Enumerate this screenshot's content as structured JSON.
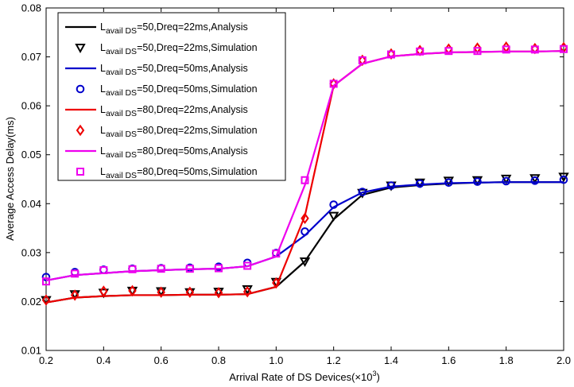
{
  "chart_data": {
    "type": "line",
    "xlabel": "Arrival Rate of DS Devices(×10",
    "xlabel_exp": "3",
    "xlabel_end": ")",
    "ylabel": "Average Access Delay(ms)",
    "xlim": [
      0.2,
      2.0
    ],
    "ylim": [
      0.01,
      0.08
    ],
    "xticks": [
      0.2,
      0.4,
      0.6,
      0.8,
      1.0,
      1.2,
      1.4,
      1.6,
      1.8,
      2.0
    ],
    "xtick_labels": [
      "0.2",
      "0.4",
      "0.6",
      "0.8",
      "1.0",
      "1.2",
      "1.4",
      "1.6",
      "1.8",
      "2.0"
    ],
    "yticks": [
      0.01,
      0.02,
      0.03,
      0.04,
      0.05,
      0.06,
      0.07,
      0.08
    ],
    "ytick_labels": [
      "0.01",
      "0.02",
      "0.03",
      "0.04",
      "0.05",
      "0.06",
      "0.07",
      "0.08"
    ],
    "legend_position": "top-left",
    "x": [
      0.2,
      0.3,
      0.4,
      0.5,
      0.6,
      0.7,
      0.8,
      0.9,
      1.0,
      1.1,
      1.2,
      1.3,
      1.4,
      1.5,
      1.6,
      1.7,
      1.8,
      1.9,
      2.0
    ],
    "series": [
      {
        "name_main": "L",
        "name_sub": "avail DS",
        "name_rest": "=50,Dreq=22ms,Analysis",
        "kind": "line",
        "color": "#000000",
        "values": [
          0.0198,
          0.0208,
          0.0211,
          0.0213,
          0.0213,
          0.0214,
          0.0214,
          0.0215,
          0.023,
          0.0282,
          0.0368,
          0.0418,
          0.0433,
          0.0438,
          0.0441,
          0.0443,
          0.0444,
          0.0444,
          0.0444
        ]
      },
      {
        "name_main": "L",
        "name_sub": "avail DS",
        "name_rest": "=50,Dreq=22ms,Simulation",
        "kind": "marker",
        "marker": "triangle-down",
        "color": "#000000",
        "values": [
          0.0203,
          0.0215,
          0.0218,
          0.0222,
          0.0221,
          0.0219,
          0.022,
          0.0225,
          0.024,
          0.0282,
          0.0375,
          0.0422,
          0.0437,
          0.0443,
          0.0447,
          0.0448,
          0.0451,
          0.0452,
          0.0455
        ]
      },
      {
        "name_main": "L",
        "name_sub": "avail DS",
        "name_rest": "=50,Dreq=50ms,Analysis",
        "kind": "line",
        "color": "#0000cc",
        "values": [
          0.0243,
          0.0254,
          0.0258,
          0.0262,
          0.0264,
          0.0266,
          0.0267,
          0.0272,
          0.0292,
          0.0335,
          0.0393,
          0.0423,
          0.0435,
          0.0439,
          0.0442,
          0.0443,
          0.0444,
          0.0444,
          0.0444
        ]
      },
      {
        "name_main": "L",
        "name_sub": "avail DS",
        "name_rest": "=50,Dreq=50ms,Simulation",
        "kind": "marker",
        "marker": "circle",
        "color": "#0000cc",
        "values": [
          0.025,
          0.026,
          0.0265,
          0.0267,
          0.0268,
          0.0269,
          0.0271,
          0.0279,
          0.0299,
          0.0343,
          0.0398,
          0.0424,
          0.0437,
          0.0441,
          0.0443,
          0.0445,
          0.0446,
          0.0447,
          0.0449
        ]
      },
      {
        "name_main": "L",
        "name_sub": "avail DS",
        "name_rest": "=80,Dreq=22ms,Analysis",
        "kind": "line",
        "color": "#ee0000",
        "values": [
          0.0198,
          0.0208,
          0.0211,
          0.0213,
          0.0213,
          0.0214,
          0.0214,
          0.0215,
          0.023,
          0.0375,
          0.0641,
          0.0686,
          0.0701,
          0.0706,
          0.0709,
          0.071,
          0.0711,
          0.0711,
          0.0712
        ]
      },
      {
        "name_main": "L",
        "name_sub": "avail DS",
        "name_rest": "=80,Dreq=22ms,Simulation",
        "kind": "marker",
        "marker": "diamond",
        "color": "#ee0000",
        "values": [
          0.0203,
          0.0213,
          0.0221,
          0.0222,
          0.0219,
          0.0219,
          0.0218,
          0.022,
          0.0238,
          0.037,
          0.0645,
          0.0693,
          0.0706,
          0.0713,
          0.0716,
          0.0718,
          0.072,
          0.0717,
          0.0719
        ]
      },
      {
        "name_main": "L",
        "name_sub": "avail DS",
        "name_rest": "=80,Dreq=50ms,Analysis",
        "kind": "line",
        "color": "#ee00ee",
        "values": [
          0.0243,
          0.0254,
          0.0258,
          0.0262,
          0.0264,
          0.0266,
          0.0267,
          0.0272,
          0.0292,
          0.0438,
          0.0641,
          0.0686,
          0.0701,
          0.0706,
          0.0709,
          0.071,
          0.0711,
          0.0711,
          0.0712
        ]
      },
      {
        "name_main": "L",
        "name_sub": "avail DS",
        "name_rest": "=80,Dreq=50ms,Simulation",
        "kind": "marker",
        "marker": "square",
        "color": "#ee00ee",
        "values": [
          0.0241,
          0.0257,
          0.0264,
          0.0266,
          0.0267,
          0.0267,
          0.0268,
          0.0273,
          0.0298,
          0.0448,
          0.0645,
          0.0693,
          0.0705,
          0.0711,
          0.0712,
          0.0712,
          0.0715,
          0.0715,
          0.0716
        ]
      }
    ]
  }
}
